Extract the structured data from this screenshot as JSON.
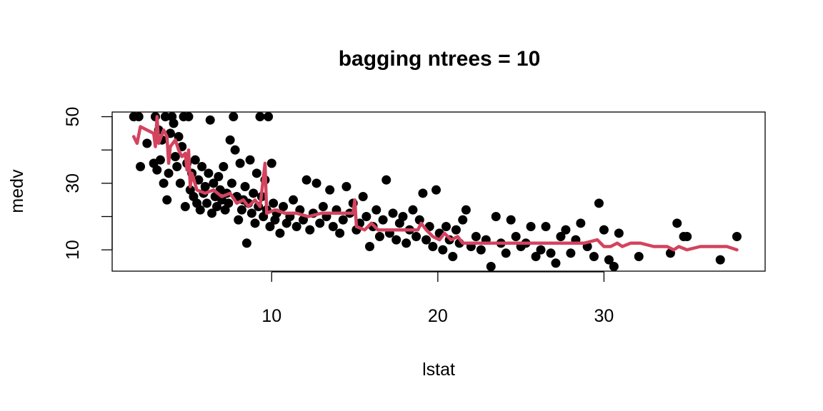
{
  "chart_data": {
    "type": "scatter",
    "title": "bagging ntrees =  10",
    "xlabel": "lstat",
    "ylabel": "medv",
    "xlim": [
      0.4,
      39.7
    ],
    "ylim": [
      3.6,
      51.4
    ],
    "xticks": [
      10,
      20,
      30
    ],
    "yticks": [
      10,
      20,
      30,
      40,
      50
    ],
    "ytick_labels_shown": [
      "10",
      "30",
      "50"
    ],
    "grid": false,
    "point_color": "#000000",
    "line_color": "#D3435E",
    "points": [
      [
        1.7,
        50
      ],
      [
        2.0,
        50
      ],
      [
        2.1,
        35
      ],
      [
        2.5,
        42
      ],
      [
        2.9,
        36
      ],
      [
        3.0,
        50
      ],
      [
        3.1,
        34
      ],
      [
        3.2,
        46
      ],
      [
        3.3,
        37
      ],
      [
        3.4,
        43
      ],
      [
        3.5,
        30
      ],
      [
        3.6,
        50
      ],
      [
        3.7,
        25
      ],
      [
        3.8,
        33
      ],
      [
        3.9,
        45
      ],
      [
        4.0,
        50
      ],
      [
        4.1,
        48
      ],
      [
        4.2,
        38
      ],
      [
        4.3,
        35
      ],
      [
        4.4,
        44
      ],
      [
        4.5,
        30
      ],
      [
        4.6,
        41
      ],
      [
        4.7,
        50
      ],
      [
        4.8,
        23
      ],
      [
        4.9,
        36
      ],
      [
        5.0,
        50
      ],
      [
        5.1,
        28
      ],
      [
        5.2,
        33
      ],
      [
        5.3,
        26
      ],
      [
        5.4,
        37
      ],
      [
        5.5,
        24
      ],
      [
        5.6,
        31
      ],
      [
        5.7,
        22
      ],
      [
        5.8,
        35
      ],
      [
        5.9,
        27
      ],
      [
        6.0,
        29
      ],
      [
        6.1,
        24
      ],
      [
        6.2,
        33
      ],
      [
        6.3,
        49
      ],
      [
        6.4,
        21
      ],
      [
        6.5,
        30
      ],
      [
        6.6,
        26
      ],
      [
        6.7,
        23
      ],
      [
        6.8,
        32
      ],
      [
        6.9,
        28
      ],
      [
        7.0,
        25
      ],
      [
        7.1,
        35
      ],
      [
        7.2,
        22
      ],
      [
        7.3,
        27
      ],
      [
        7.4,
        24
      ],
      [
        7.5,
        43
      ],
      [
        7.6,
        30
      ],
      [
        7.7,
        50
      ],
      [
        7.8,
        40
      ],
      [
        7.9,
        26
      ],
      [
        8.0,
        19
      ],
      [
        8.1,
        36
      ],
      [
        8.2,
        22
      ],
      [
        8.3,
        25
      ],
      [
        8.4,
        29
      ],
      [
        8.5,
        12
      ],
      [
        8.6,
        24
      ],
      [
        8.7,
        37
      ],
      [
        8.8,
        21
      ],
      [
        8.9,
        27
      ],
      [
        9.0,
        18
      ],
      [
        9.1,
        33
      ],
      [
        9.2,
        23
      ],
      [
        9.3,
        50
      ],
      [
        9.4,
        26
      ],
      [
        9.5,
        20
      ],
      [
        9.6,
        31
      ],
      [
        9.7,
        22
      ],
      [
        9.8,
        50
      ],
      [
        9.9,
        17
      ],
      [
        10.0,
        36
      ],
      [
        10.1,
        24
      ],
      [
        10.2,
        19
      ],
      [
        10.3,
        21
      ],
      [
        10.5,
        15
      ],
      [
        10.7,
        23
      ],
      [
        10.9,
        18
      ],
      [
        11.1,
        20
      ],
      [
        11.3,
        25
      ],
      [
        11.5,
        17
      ],
      [
        11.7,
        22
      ],
      [
        11.9,
        19
      ],
      [
        12.1,
        31
      ],
      [
        12.3,
        16
      ],
      [
        12.5,
        21
      ],
      [
        12.7,
        30
      ],
      [
        12.9,
        18
      ],
      [
        13.1,
        23
      ],
      [
        13.3,
        20
      ],
      [
        13.5,
        28
      ],
      [
        13.7,
        17
      ],
      [
        13.9,
        22
      ],
      [
        14.1,
        15
      ],
      [
        14.3,
        19
      ],
      [
        14.5,
        29
      ],
      [
        14.7,
        21
      ],
      [
        14.9,
        24
      ],
      [
        15.1,
        16
      ],
      [
        15.3,
        18
      ],
      [
        15.5,
        26
      ],
      [
        15.7,
        20
      ],
      [
        15.9,
        11
      ],
      [
        16.1,
        17
      ],
      [
        16.3,
        22
      ],
      [
        16.5,
        14
      ],
      [
        16.7,
        19
      ],
      [
        16.9,
        31
      ],
      [
        17.1,
        15
      ],
      [
        17.3,
        21
      ],
      [
        17.5,
        13
      ],
      [
        17.7,
        18
      ],
      [
        17.9,
        20
      ],
      [
        18.1,
        12
      ],
      [
        18.3,
        16
      ],
      [
        18.5,
        22
      ],
      [
        18.7,
        14
      ],
      [
        18.9,
        19
      ],
      [
        19.1,
        27
      ],
      [
        19.3,
        13
      ],
      [
        19.5,
        17
      ],
      [
        19.7,
        11
      ],
      [
        19.9,
        28
      ],
      [
        20.1,
        15
      ],
      [
        20.3,
        10
      ],
      [
        20.5,
        17
      ],
      [
        20.7,
        13
      ],
      [
        20.9,
        8
      ],
      [
        21.1,
        16
      ],
      [
        21.3,
        12
      ],
      [
        21.5,
        19
      ],
      [
        21.7,
        22
      ],
      [
        22.0,
        11
      ],
      [
        22.3,
        14
      ],
      [
        22.6,
        10
      ],
      [
        22.9,
        13
      ],
      [
        23.2,
        5
      ],
      [
        23.5,
        20
      ],
      [
        23.8,
        12
      ],
      [
        24.1,
        9
      ],
      [
        24.4,
        19
      ],
      [
        24.7,
        14
      ],
      [
        25.0,
        11
      ],
      [
        25.3,
        12
      ],
      [
        25.6,
        17
      ],
      [
        25.9,
        8
      ],
      [
        26.2,
        10
      ],
      [
        26.5,
        17
      ],
      [
        26.8,
        9
      ],
      [
        27.1,
        6
      ],
      [
        27.4,
        14
      ],
      [
        27.7,
        16
      ],
      [
        28.0,
        9
      ],
      [
        28.3,
        13
      ],
      [
        28.6,
        18
      ],
      [
        29.0,
        11
      ],
      [
        29.4,
        8
      ],
      [
        29.7,
        24
      ],
      [
        30.0,
        16
      ],
      [
        30.3,
        7
      ],
      [
        30.6,
        5
      ],
      [
        30.9,
        15
      ],
      [
        32.1,
        8
      ],
      [
        34.0,
        9
      ],
      [
        34.4,
        18
      ],
      [
        34.8,
        14
      ],
      [
        35.0,
        14
      ],
      [
        37.0,
        7
      ],
      [
        38.0,
        14
      ]
    ],
    "fit_line": [
      [
        1.7,
        44
      ],
      [
        1.9,
        42
      ],
      [
        2.1,
        47
      ],
      [
        2.5,
        46
      ],
      [
        2.9,
        45
      ],
      [
        3.0,
        41
      ],
      [
        3.1,
        50
      ],
      [
        3.2,
        42
      ],
      [
        3.5,
        46
      ],
      [
        3.7,
        44
      ],
      [
        3.8,
        36
      ],
      [
        3.9,
        41
      ],
      [
        4.2,
        43
      ],
      [
        4.4,
        40
      ],
      [
        4.6,
        38
      ],
      [
        4.8,
        39
      ],
      [
        4.9,
        34
      ],
      [
        5.0,
        40
      ],
      [
        5.1,
        29
      ],
      [
        5.2,
        33
      ],
      [
        5.5,
        28
      ],
      [
        6.0,
        27
      ],
      [
        6.5,
        28
      ],
      [
        7.0,
        26
      ],
      [
        7.5,
        27
      ],
      [
        7.9,
        24
      ],
      [
        8.3,
        25
      ],
      [
        8.6,
        23
      ],
      [
        9.0,
        25
      ],
      [
        9.3,
        23
      ],
      [
        9.6,
        36
      ],
      [
        9.7,
        21
      ],
      [
        10.2,
        22
      ],
      [
        10.8,
        21
      ],
      [
        11.5,
        21
      ],
      [
        12.2,
        20
      ],
      [
        13.0,
        21
      ],
      [
        13.8,
        21
      ],
      [
        14.5,
        21
      ],
      [
        14.9,
        21
      ],
      [
        15.0,
        25
      ],
      [
        15.1,
        17
      ],
      [
        15.6,
        16
      ],
      [
        16.0,
        18
      ],
      [
        16.4,
        16
      ],
      [
        17.0,
        16
      ],
      [
        17.6,
        16
      ],
      [
        18.2,
        16
      ],
      [
        18.8,
        16
      ],
      [
        19.0,
        18
      ],
      [
        19.3,
        16
      ],
      [
        19.7,
        14
      ],
      [
        20.1,
        13
      ],
      [
        20.4,
        15
      ],
      [
        20.8,
        13
      ],
      [
        21.2,
        14
      ],
      [
        21.5,
        12
      ],
      [
        22.0,
        12
      ],
      [
        22.8,
        12
      ],
      [
        23.4,
        12
      ],
      [
        24.0,
        12
      ],
      [
        24.8,
        12
      ],
      [
        25.6,
        12
      ],
      [
        26.4,
        12
      ],
      [
        27.2,
        12
      ],
      [
        28.0,
        12
      ],
      [
        28.8,
        12
      ],
      [
        29.6,
        13
      ],
      [
        30.0,
        11
      ],
      [
        30.4,
        11
      ],
      [
        30.8,
        12
      ],
      [
        31.1,
        11
      ],
      [
        31.6,
        12
      ],
      [
        32.2,
        12
      ],
      [
        33.0,
        11
      ],
      [
        33.8,
        11
      ],
      [
        34.2,
        10
      ],
      [
        34.5,
        11
      ],
      [
        35.0,
        10
      ],
      [
        35.8,
        11
      ],
      [
        36.6,
        11
      ],
      [
        37.4,
        11
      ],
      [
        38.0,
        10
      ]
    ]
  }
}
